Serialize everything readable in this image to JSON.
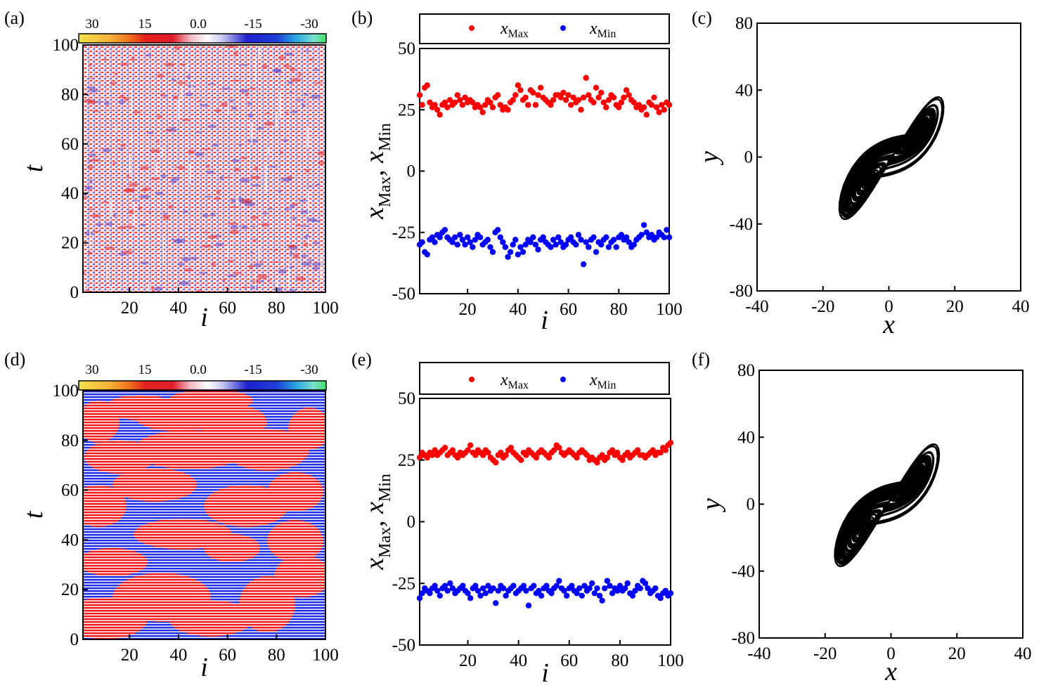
{
  "panels": {
    "a": "(a)",
    "b": "(b)",
    "c": "(c)",
    "d": "(d)",
    "e": "(e)",
    "f": "(f)"
  },
  "colorbar": {
    "tick_labels": [
      "30",
      "15",
      "0.0",
      "-15",
      "-30"
    ],
    "colors": [
      "#f3e24a",
      "#f29a2a",
      "#e2201c",
      "#f2c2c4",
      "#ffffff",
      "#c8c8f0",
      "#2020d0",
      "#2aa8e0",
      "#40e060"
    ]
  },
  "colors": {
    "max": "#ff0000",
    "min": "#0000ff",
    "pattern_red": "#ee1c1c",
    "pattern_blue": "#1c2ee6",
    "curve": "#000000"
  },
  "chart_data": [
    {
      "panel": "a",
      "type": "heatmap",
      "xlabel": "i",
      "ylabel": "t",
      "xlim": [
        1,
        100
      ],
      "ylim": [
        0,
        100
      ],
      "xticks": [
        "20",
        "40",
        "60",
        "80",
        "100"
      ],
      "yticks": [
        "0",
        "20",
        "40",
        "60",
        "80",
        "100"
      ],
      "pattern": "fine red/blue striped spatiotemporal chaos"
    },
    {
      "panel": "b",
      "type": "scatter",
      "xlabel": "i",
      "ylabel": "x_Max, x_Min",
      "xlim": [
        1,
        100
      ],
      "ylim": [
        -50,
        50
      ],
      "xticks": [
        "20",
        "40",
        "60",
        "80",
        "100"
      ],
      "yticks": [
        "-50",
        "-25",
        "0",
        "25",
        "50"
      ],
      "legend": [
        "x",
        "Max",
        "x",
        "Min"
      ],
      "series": [
        {
          "name": "x_Max",
          "values": [
            31,
            27,
            34,
            35,
            28,
            26,
            27,
            25,
            23,
            27,
            28,
            26,
            29,
            27,
            28,
            31,
            29,
            27,
            30,
            28,
            29,
            28,
            26,
            27,
            26,
            24,
            27,
            29,
            28,
            26,
            30,
            31,
            27,
            25,
            26,
            25,
            28,
            29,
            31,
            35,
            33,
            29,
            30,
            27,
            33,
            32,
            27,
            31,
            34,
            30,
            29,
            28,
            27,
            29,
            31,
            31,
            30,
            32,
            29,
            31,
            27,
            30,
            28,
            29,
            25,
            30,
            38,
            31,
            29,
            28,
            34,
            30,
            32,
            28,
            26,
            29,
            31,
            30,
            27,
            26,
            28,
            30,
            33,
            31,
            29,
            28,
            26,
            27,
            25,
            26,
            23,
            28,
            27,
            30,
            26,
            24,
            27,
            25,
            28,
            27
          ]
        },
        {
          "name": "x_Min",
          "values": [
            -30,
            -29,
            -33,
            -34,
            -28,
            -27,
            -29,
            -26,
            -27,
            -25,
            -24,
            -27,
            -28,
            -29,
            -27,
            -30,
            -26,
            -28,
            -30,
            -27,
            -29,
            -31,
            -28,
            -26,
            -27,
            -30,
            -29,
            -28,
            -31,
            -33,
            -25,
            -24,
            -27,
            -29,
            -31,
            -35,
            -33,
            -30,
            -28,
            -34,
            -31,
            -33,
            -30,
            -28,
            -29,
            -27,
            -30,
            -32,
            -28,
            -27,
            -29,
            -30,
            -31,
            -28,
            -30,
            -27,
            -29,
            -31,
            -30,
            -28,
            -27,
            -29,
            -30,
            -26,
            -28,
            -38,
            -29,
            -31,
            -28,
            -27,
            -33,
            -29,
            -30,
            -28,
            -27,
            -31,
            -29,
            -28,
            -31,
            -27,
            -26,
            -28,
            -27,
            -29,
            -31,
            -30,
            -28,
            -27,
            -26,
            -22,
            -25,
            -27,
            -26,
            -28,
            -27,
            -25,
            -26,
            -27,
            -24,
            -27
          ]
        }
      ]
    },
    {
      "panel": "c",
      "type": "line",
      "xlabel": "x",
      "ylabel": "y",
      "xlim": [
        -40,
        40
      ],
      "ylim": [
        -80,
        80
      ],
      "xticks": [
        "-40",
        "-20",
        "0",
        "20",
        "40"
      ],
      "yticks": [
        "-80",
        "-40",
        "0",
        "40",
        "80"
      ],
      "description": "chaotic double-scroll attractor"
    },
    {
      "panel": "d",
      "type": "heatmap",
      "xlabel": "i",
      "ylabel": "t",
      "xlim": [
        1,
        100
      ],
      "ylim": [
        0,
        100
      ],
      "xticks": [
        "20",
        "40",
        "60",
        "80",
        "100"
      ],
      "yticks": [
        "0",
        "20",
        "40",
        "60",
        "80",
        "100"
      ],
      "pattern": "large red and blue patches"
    },
    {
      "panel": "e",
      "type": "scatter",
      "xlabel": "i",
      "ylabel": "x_Max, x_Min",
      "xlim": [
        1,
        100
      ],
      "ylim": [
        -50,
        50
      ],
      "xticks": [
        "20",
        "40",
        "60",
        "80",
        "100"
      ],
      "yticks": [
        "-50",
        "-25",
        "0",
        "25",
        "50"
      ],
      "legend": [
        "x",
        "Max",
        "x",
        "Min"
      ],
      "series": [
        {
          "name": "x_Max",
          "values": [
            26,
            28,
            27,
            26,
            28,
            27,
            29,
            27,
            28,
            29,
            30,
            27,
            28,
            29,
            27,
            26,
            28,
            27,
            28,
            29,
            31,
            28,
            27,
            29,
            28,
            27,
            29,
            28,
            26,
            25,
            24,
            27,
            28,
            26,
            27,
            29,
            30,
            28,
            27,
            26,
            25,
            28,
            27,
            29,
            28,
            27,
            26,
            28,
            29,
            28,
            27,
            26,
            28,
            29,
            31,
            30,
            28,
            27,
            28,
            29,
            28,
            27,
            26,
            28,
            29,
            28,
            27,
            25,
            26,
            25,
            24,
            26,
            27,
            25,
            26,
            28,
            29,
            27,
            28,
            26,
            25,
            27,
            28,
            26,
            27,
            28,
            29,
            27,
            27,
            26,
            27,
            28,
            29,
            27,
            28,
            28,
            30,
            29,
            31,
            32
          ]
        },
        {
          "name": "x_Min",
          "values": [
            -31,
            -29,
            -27,
            -28,
            -29,
            -27,
            -26,
            -28,
            -30,
            -27,
            -26,
            -28,
            -25,
            -27,
            -29,
            -28,
            -27,
            -26,
            -28,
            -29,
            -31,
            -27,
            -26,
            -28,
            -30,
            -27,
            -29,
            -26,
            -28,
            -27,
            -33,
            -28,
            -26,
            -27,
            -30,
            -28,
            -27,
            -26,
            -29,
            -28,
            -27,
            -26,
            -28,
            -34,
            -27,
            -26,
            -29,
            -28,
            -30,
            -27,
            -26,
            -28,
            -29,
            -27,
            -26,
            -24,
            -27,
            -28,
            -30,
            -27,
            -26,
            -28,
            -29,
            -27,
            -30,
            -26,
            -28,
            -27,
            -25,
            -29,
            -27,
            -30,
            -32,
            -27,
            -24,
            -26,
            -29,
            -27,
            -28,
            -26,
            -28,
            -27,
            -25,
            -29,
            -30,
            -28,
            -26,
            -27,
            -24,
            -25,
            -27,
            -29,
            -28,
            -27,
            -30,
            -31,
            -29,
            -28,
            -30,
            -29
          ]
        }
      ]
    },
    {
      "panel": "f",
      "type": "line",
      "xlabel": "x",
      "ylabel": "y",
      "xlim": [
        -40,
        40
      ],
      "ylim": [
        -80,
        80
      ],
      "xticks": [
        "-40",
        "-20",
        "0",
        "20",
        "40"
      ],
      "yticks": [
        "-80",
        "-40",
        "0",
        "40",
        "80"
      ],
      "description": "chaotic double-scroll attractor"
    }
  ]
}
